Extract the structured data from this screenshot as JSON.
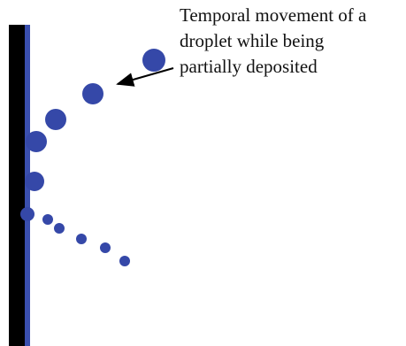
{
  "annotation": {
    "lines": [
      "Temporal movement of a",
      "droplet while being",
      "partially deposited"
    ]
  }
}
